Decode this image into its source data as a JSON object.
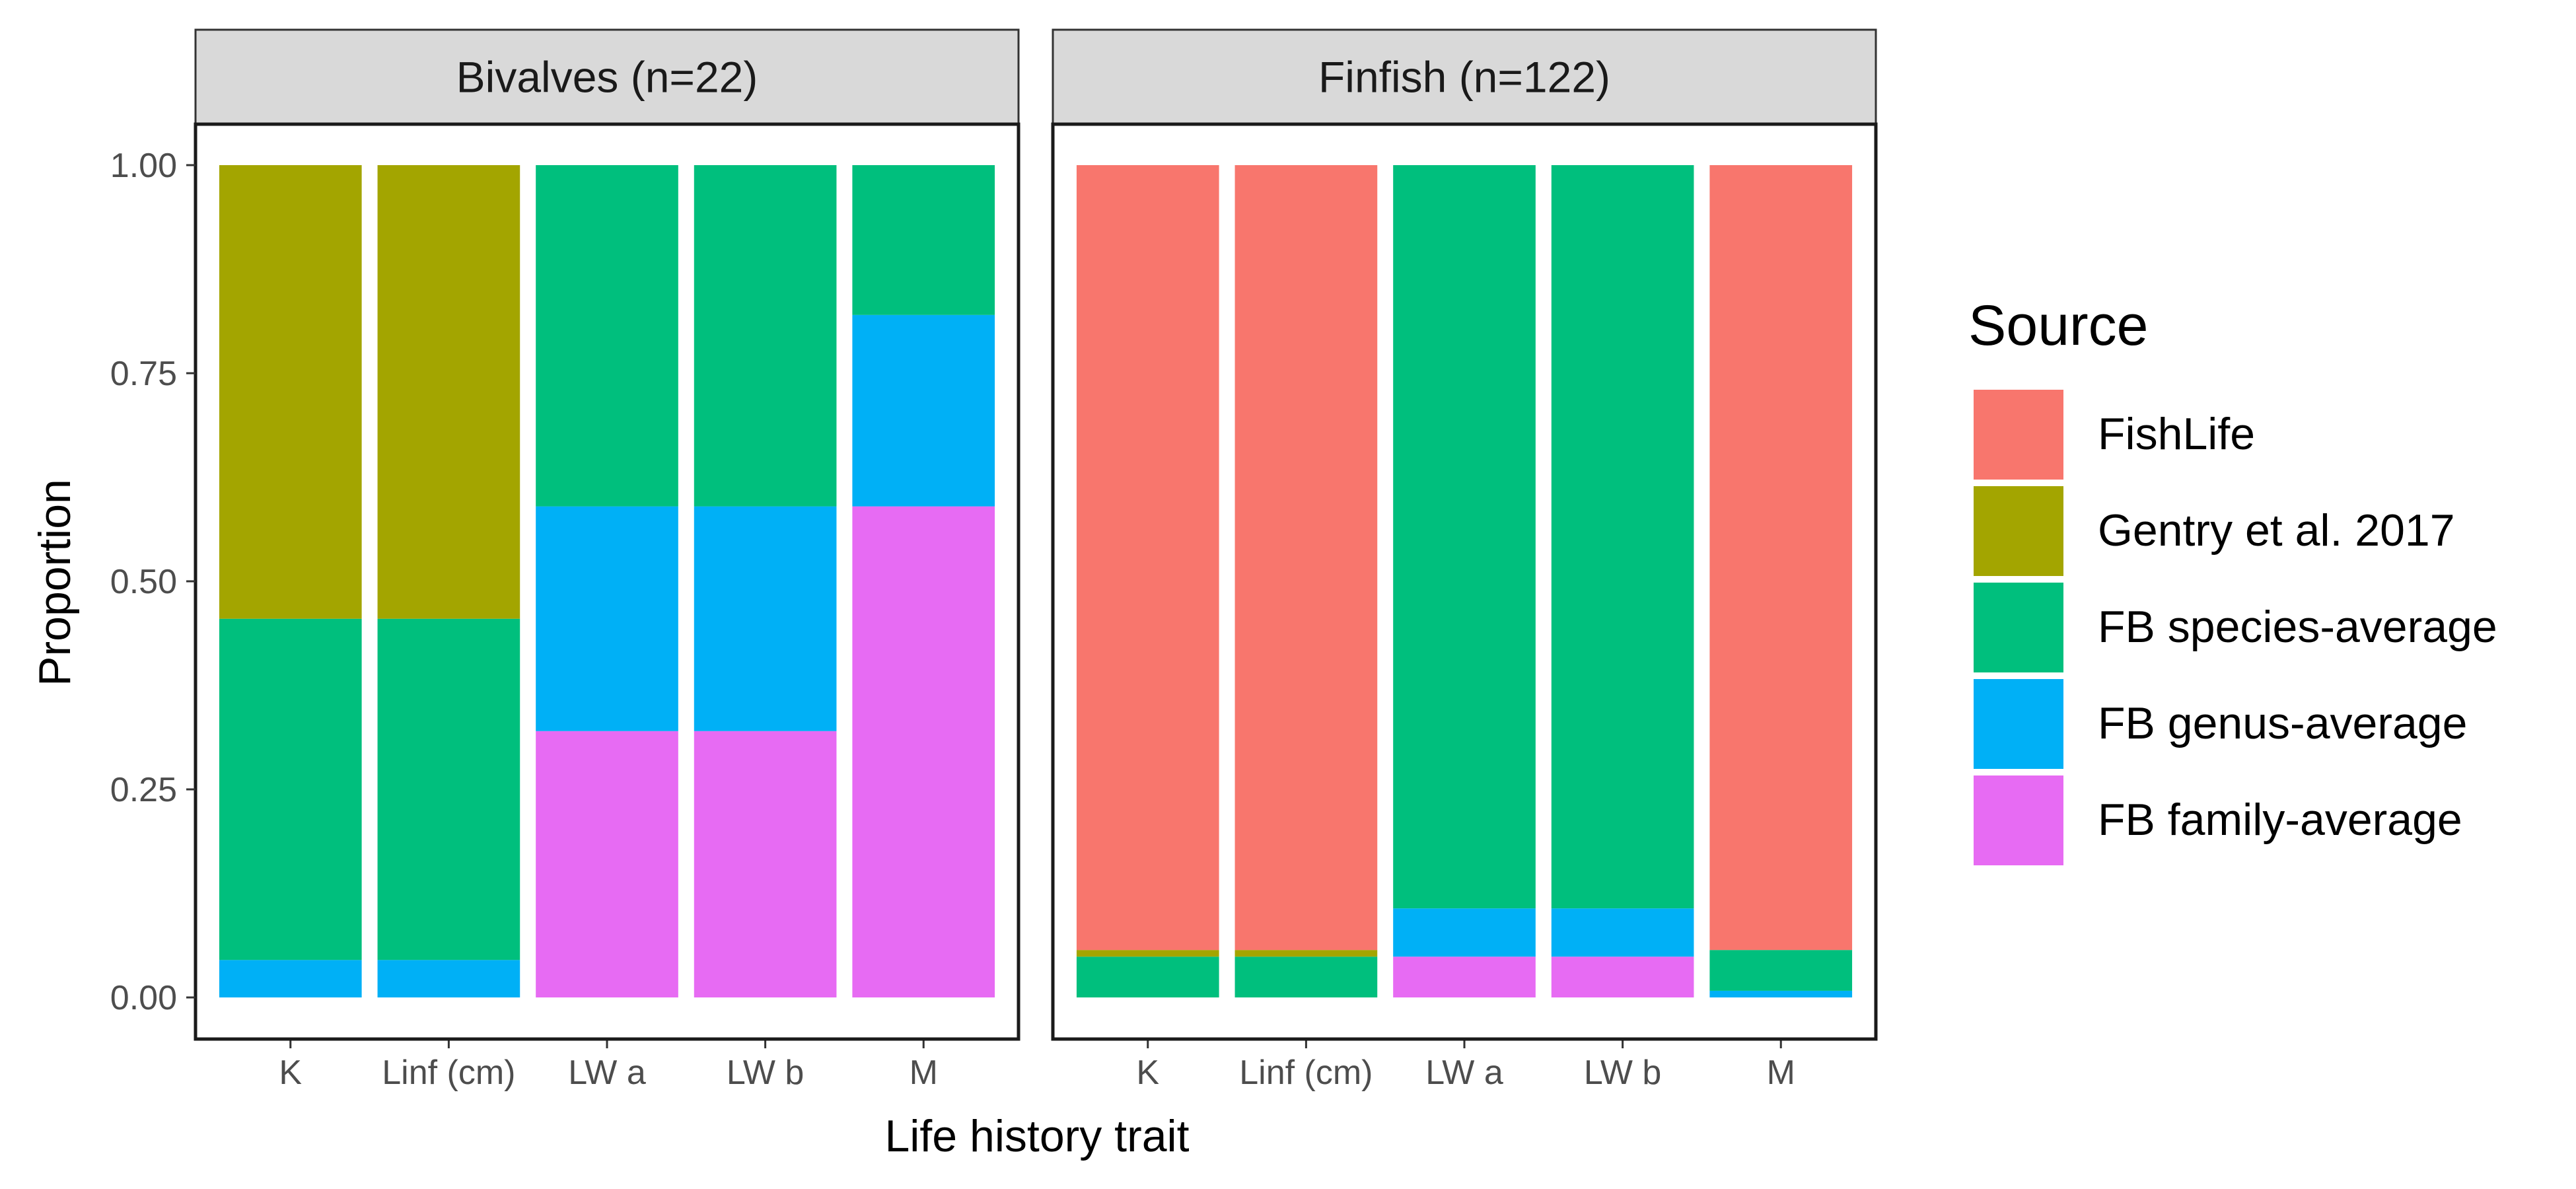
{
  "chart_data": {
    "type": "bar",
    "stacked": true,
    "xlabel": "Life history trait",
    "ylabel": "Proportion",
    "ylim": [
      0,
      1
    ],
    "yticks": [
      "0.00",
      "0.25",
      "0.50",
      "0.75",
      "1.00"
    ],
    "ytick_values": [
      0,
      0.25,
      0.5,
      0.75,
      1
    ],
    "categories": [
      "K",
      "Linf (cm)",
      "LW a",
      "LW b",
      "M"
    ],
    "grid": false,
    "legend": {
      "title": "Source",
      "position": "right",
      "entries": [
        "FishLife",
        "Gentry et al. 2017",
        "FB species-average",
        "FB genus-average",
        "FB family-average"
      ],
      "colors": [
        "#F8766D",
        "#A3A500",
        "#00BF7D",
        "#00B0F6",
        "#E76BF3"
      ]
    },
    "panels": [
      {
        "title": "Bivalves (n=22)",
        "series": [
          {
            "name": "FishLife",
            "values": [
              0,
              0,
              0,
              0,
              0
            ]
          },
          {
            "name": "Gentry et al. 2017",
            "values": [
              0.545,
              0.545,
              0,
              0,
              0
            ]
          },
          {
            "name": "FB species-average",
            "values": [
              0.41,
              0.41,
              0.41,
              0.41,
              0.18
            ]
          },
          {
            "name": "FB genus-average",
            "values": [
              0.045,
              0.045,
              0.27,
              0.27,
              0.23
            ]
          },
          {
            "name": "FB family-average",
            "values": [
              0,
              0,
              0.32,
              0.32,
              0.59
            ]
          }
        ]
      },
      {
        "title": "Finfish (n=122)",
        "series": [
          {
            "name": "FishLife",
            "values": [
              0.943,
              0.943,
              0,
              0,
              0.943
            ]
          },
          {
            "name": "Gentry et al. 2017",
            "values": [
              0.008,
              0.008,
              0,
              0,
              0
            ]
          },
          {
            "name": "FB species-average",
            "values": [
              0.049,
              0.049,
              0.893,
              0.893,
              0.049
            ]
          },
          {
            "name": "FB genus-average",
            "values": [
              0,
              0,
              0.058,
              0.058,
              0.008
            ]
          },
          {
            "name": "FB family-average",
            "values": [
              0,
              0,
              0.049,
              0.049,
              0
            ]
          }
        ]
      }
    ]
  }
}
